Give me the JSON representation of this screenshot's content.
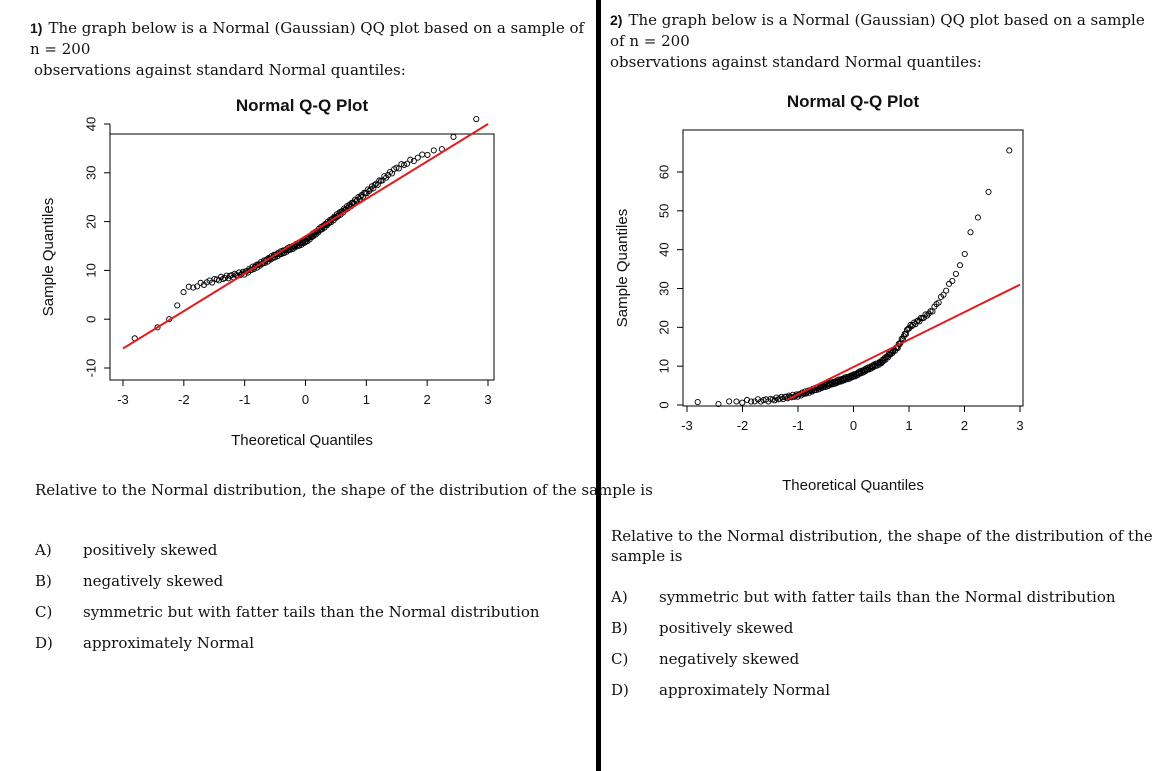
{
  "questions": [
    {
      "number": "1)",
      "header_line1": "The graph below is a Normal (Gaussian) QQ plot based on a sample of n = 200",
      "header_line2": "observations against standard Normal quantiles:",
      "prompt": "Relative to the Normal distribution, the shape of the distribution of the sample is",
      "options": [
        {
          "letter": "A)",
          "text": "positively skewed"
        },
        {
          "letter": "B)",
          "text": "negatively skewed"
        },
        {
          "letter": "C)",
          "text": "symmetric but with fatter tails than the Normal distribution"
        },
        {
          "letter": "D)",
          "text": "approximately Normal"
        }
      ]
    },
    {
      "number": "2)",
      "header_line1": "The graph below is a Normal (Gaussian) QQ plot based on a sample of n = 200",
      "header_line2": "observations against standard Normal quantiles:",
      "prompt": "Relative to the Normal distribution, the shape of the distribution of the sample is",
      "options": [
        {
          "letter": "A)",
          "text": "symmetric but with fatter tails than the Normal distribution"
        },
        {
          "letter": "B)",
          "text": "positively skewed"
        },
        {
          "letter": "C)",
          "text": "negatively skewed"
        },
        {
          "letter": "D)",
          "text": "approximately Normal"
        }
      ]
    }
  ],
  "chart_data": [
    {
      "type": "scatter",
      "title": "Normal Q-Q Plot",
      "xlabel": "Theoretical Quantiles",
      "ylabel": "Sample Quantiles",
      "xlim": [
        -3,
        3
      ],
      "ylim": [
        -10,
        40
      ],
      "xticks": [
        "-3",
        "-2",
        "-1",
        "0",
        "1",
        "2",
        "3"
      ],
      "yticks": [
        "-10",
        "0",
        "10",
        "20",
        "30",
        "40"
      ],
      "point_color": "#000000",
      "line_color": "#e41a1c",
      "reference_line": {
        "x": [
          -3,
          3
        ],
        "y": [
          -6,
          40
        ]
      },
      "n": 200,
      "shape": "symmetric, fatter tails",
      "anchor_points": [
        {
          "x": -2.95,
          "y": -5
        },
        {
          "x": -2.6,
          "y": -3
        },
        {
          "x": -2.4,
          "y": -1
        },
        {
          "x": -2.2,
          "y": 0
        },
        {
          "x": -2.0,
          "y": 6
        },
        {
          "x": -1.5,
          "y": 8
        },
        {
          "x": -1.0,
          "y": 9.5
        },
        {
          "x": -0.5,
          "y": 13
        },
        {
          "x": 0.0,
          "y": 16
        },
        {
          "x": 0.5,
          "y": 21
        },
        {
          "x": 1.0,
          "y": 26
        },
        {
          "x": 1.5,
          "y": 31
        },
        {
          "x": 2.0,
          "y": 34
        },
        {
          "x": 2.3,
          "y": 35
        },
        {
          "x": 2.45,
          "y": 38
        },
        {
          "x": 2.85,
          "y": 41
        }
      ]
    },
    {
      "type": "scatter",
      "title": "Normal Q-Q Plot",
      "xlabel": "Theoretical Quantiles",
      "ylabel": "Sample Quantiles",
      "xlim": [
        -3,
        3
      ],
      "ylim": [
        0,
        60
      ],
      "xticks": [
        "-3",
        "-2",
        "-1",
        "0",
        "1",
        "2",
        "3"
      ],
      "yticks": [
        "0",
        "10",
        "20",
        "30",
        "40",
        "50",
        "60"
      ],
      "point_color": "#000000",
      "line_color": "#e41a1c",
      "reference_line": {
        "x": [
          -1.2,
          3
        ],
        "y": 1.3,
        "x_end": 3.0,
        "y_end": 31
      },
      "n": 200,
      "shape": "positively skewed",
      "anchor_points": [
        {
          "x": -2.8,
          "y": 0.5
        },
        {
          "x": -2.4,
          "y": 0.6
        },
        {
          "x": -2.0,
          "y": 0.9
        },
        {
          "x": -1.5,
          "y": 1.3
        },
        {
          "x": -1.0,
          "y": 2.5
        },
        {
          "x": -0.5,
          "y": 5
        },
        {
          "x": 0.0,
          "y": 7.5
        },
        {
          "x": 0.5,
          "y": 11
        },
        {
          "x": 0.8,
          "y": 15
        },
        {
          "x": 1.0,
          "y": 20
        },
        {
          "x": 1.4,
          "y": 24
        },
        {
          "x": 1.6,
          "y": 28
        },
        {
          "x": 1.9,
          "y": 35
        },
        {
          "x": 2.0,
          "y": 39
        },
        {
          "x": 2.1,
          "y": 44
        },
        {
          "x": 2.4,
          "y": 53
        },
        {
          "x": 2.55,
          "y": 63
        },
        {
          "x": 2.9,
          "y": 66
        }
      ]
    }
  ]
}
